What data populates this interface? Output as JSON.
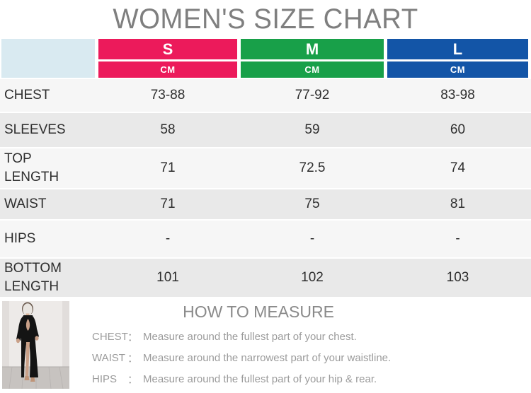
{
  "title": "WOMEN'S SIZE CHART",
  "chart_data": {
    "type": "table",
    "title": "WOMEN'S SIZE CHART",
    "unit": "CM",
    "columns": [
      "S",
      "M",
      "L"
    ],
    "rows": [
      {
        "label": "CHEST",
        "values": [
          "73-88",
          "77-92",
          "83-98"
        ]
      },
      {
        "label": "SLEEVES",
        "values": [
          "58",
          "59",
          "60"
        ]
      },
      {
        "label": "TOP\nLENGTH",
        "values": [
          "71",
          "72.5",
          "74"
        ]
      },
      {
        "label": "WAIST",
        "values": [
          "71",
          "75",
          "81"
        ]
      },
      {
        "label": "HIPS",
        "values": [
          "-",
          "-",
          "-"
        ]
      },
      {
        "label": "BOTTOM\nLENGTH",
        "values": [
          "101",
          "102",
          "103"
        ]
      }
    ]
  },
  "colors": {
    "size_columns": [
      "#EC1A5B",
      "#18A049",
      "#1355A7"
    ],
    "corner_cell": "#D9EAF1",
    "row_light": "#F6F6F6",
    "row_dark": "#E9E9E9",
    "title_gray": "#7F7F7F",
    "measure_text_gray": "#9B9B9B"
  },
  "how_to_measure": {
    "title": "HOW TO MEASURE",
    "colon": "：",
    "lines": [
      {
        "label": "CHEST",
        "text": "Measure around the fullest part of your chest."
      },
      {
        "label": "WAIST",
        "text": "Measure around the narrowest part of your waistline."
      },
      {
        "label": "HIPS",
        "text": "Measure around the fullest part of your hip & rear."
      }
    ],
    "photo_description": "Model wearing a black long-sleeve cutout dress with a high slit"
  }
}
